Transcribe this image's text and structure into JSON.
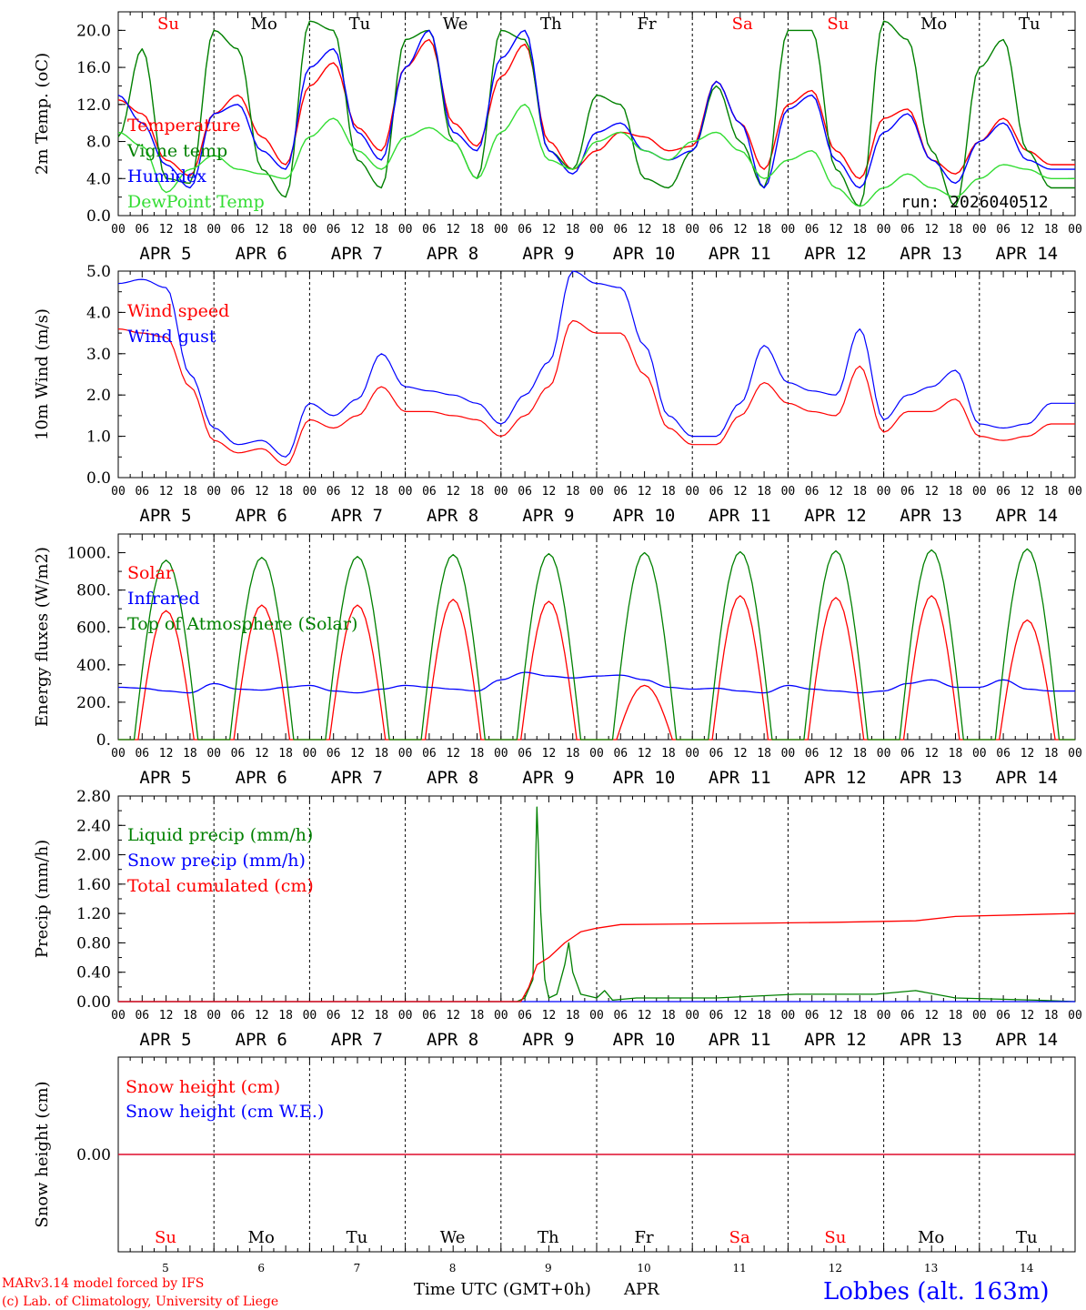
{
  "colors": {
    "red": "#ff0000",
    "green": "#008000",
    "blue": "#0000ff",
    "lightgreen": "#33dd33",
    "black": "#000000"
  },
  "run_label": "run: 2026040512",
  "hour_ticks": [
    "00",
    "06",
    "12",
    "18"
  ],
  "final_tick": "00",
  "date_labels": [
    "APR  5",
    "APR  6",
    "APR  7",
    "APR  8",
    "APR  9",
    "APR 10",
    "APR 11",
    "APR 12",
    "APR 13",
    "APR 14"
  ],
  "days": [
    {
      "abbr": "Su",
      "color": "#ff0000",
      "num": "5"
    },
    {
      "abbr": "Mo",
      "color": "#000000",
      "num": "6"
    },
    {
      "abbr": "Tu",
      "color": "#000000",
      "num": "7"
    },
    {
      "abbr": "We",
      "color": "#000000",
      "num": "8"
    },
    {
      "abbr": "Th",
      "color": "#000000",
      "num": "9"
    },
    {
      "abbr": "Fr",
      "color": "#000000",
      "num": "10"
    },
    {
      "abbr": "Sa",
      "color": "#ff0000",
      "num": "11"
    },
    {
      "abbr": "Su",
      "color": "#ff0000",
      "num": "12"
    },
    {
      "abbr": "Mo",
      "color": "#000000",
      "num": "13"
    },
    {
      "abbr": "Tu",
      "color": "#000000",
      "num": "14"
    }
  ],
  "footer": {
    "credit1": "MARv3.14 model forced by IFS",
    "credit2": "(c) Lab. of Climatology, University of Liege",
    "xlabel": "Time UTC (GMT+0h)",
    "month": "APR",
    "station": "Lobbes (alt. 163m)"
  },
  "chart_data": [
    {
      "type": "line",
      "ylabel": "2m Temp. (oC)",
      "ylim": [
        0,
        22
      ],
      "yticks": [
        "0.0",
        "4.0",
        "8.0",
        "12.0",
        "16.0",
        "20.0"
      ],
      "ytick_values": [
        0,
        4,
        8,
        12,
        16,
        20
      ],
      "x_hours_per_point": 6,
      "series": [
        {
          "name": "Temperature",
          "color": "#ff0000",
          "values": [
            12.5,
            11,
            6,
            4.3,
            11,
            13,
            8.5,
            5.5,
            14,
            16.5,
            9.5,
            7,
            16,
            19,
            10,
            7.5,
            15,
            18.5,
            8,
            5,
            7,
            9,
            8.5,
            7,
            7.5,
            14.5,
            10,
            5,
            12,
            13.5,
            7,
            4,
            10.5,
            11.5,
            6,
            4.5,
            8,
            10.5,
            7,
            5.5
          ]
        },
        {
          "name": "Vigne temp",
          "color": "#008000",
          "values": [
            8.5,
            18,
            4,
            3.5,
            20,
            18,
            5,
            2,
            21,
            20,
            6,
            3,
            19,
            20,
            8,
            4,
            20,
            19,
            7,
            5,
            13,
            12,
            4,
            3,
            7,
            14,
            8,
            3,
            20,
            20,
            5,
            1,
            21,
            19,
            7,
            1,
            16,
            19,
            7,
            3
          ]
        },
        {
          "name": "Humidex",
          "color": "#0000ff",
          "values": [
            13,
            10,
            5.5,
            3,
            11,
            12,
            7,
            5,
            16,
            18,
            9,
            6,
            16,
            20,
            9,
            7,
            17,
            20,
            7,
            4.5,
            9,
            10,
            7,
            6,
            7,
            14.5,
            10,
            3,
            11.5,
            13,
            6,
            3,
            9,
            11,
            6,
            3.5,
            8,
            10,
            6,
            5
          ]
        },
        {
          "name": "DewPoint Temp",
          "color": "#33dd33",
          "values": [
            9,
            7.5,
            2.5,
            5,
            6.5,
            5,
            4.5,
            4,
            8.5,
            10.5,
            7,
            5,
            8.5,
            9.5,
            8,
            4,
            9,
            12,
            6,
            5,
            8,
            9,
            7,
            6,
            8,
            9,
            7,
            4,
            6,
            7,
            3,
            1,
            3,
            4.5,
            3,
            2,
            4,
            5.5,
            5,
            4
          ]
        }
      ],
      "annotations": [
        "run: 2026040512"
      ]
    },
    {
      "type": "line",
      "ylabel": "10m Wind (m/s)",
      "ylim": [
        0,
        5
      ],
      "yticks": [
        "0.0",
        "1.0",
        "2.0",
        "3.0",
        "4.0",
        "5.0"
      ],
      "ytick_values": [
        0,
        1,
        2,
        3,
        4,
        5
      ],
      "x_hours_per_point": 6,
      "series": [
        {
          "name": "Wind speed",
          "color": "#ff0000",
          "values": [
            3.6,
            3.5,
            3.4,
            2.2,
            0.9,
            0.6,
            0.7,
            0.3,
            1.4,
            1.2,
            1.5,
            2.2,
            1.6,
            1.6,
            1.5,
            1.4,
            1.0,
            1.5,
            2.2,
            3.8,
            3.5,
            3.5,
            2.5,
            1.2,
            0.8,
            0.8,
            1.5,
            2.3,
            1.8,
            1.6,
            1.5,
            2.7,
            1.1,
            1.6,
            1.6,
            1.9,
            1.0,
            0.9,
            1.0,
            1.3
          ]
        },
        {
          "name": "Wind gust",
          "color": "#0000ff",
          "values": [
            4.7,
            4.8,
            4.6,
            2.5,
            1.2,
            0.8,
            0.9,
            0.5,
            1.8,
            1.5,
            1.9,
            3.0,
            2.2,
            2.1,
            2.0,
            1.8,
            1.3,
            2.0,
            2.8,
            5.0,
            4.7,
            4.6,
            3.2,
            1.5,
            1.0,
            1.0,
            1.8,
            3.2,
            2.3,
            2.1,
            2.0,
            3.6,
            1.4,
            2.0,
            2.2,
            2.6,
            1.3,
            1.2,
            1.3,
            1.8
          ]
        }
      ]
    },
    {
      "type": "line",
      "ylabel": "Energy fluxes (W/m2)",
      "ylim": [
        0,
        1100
      ],
      "yticks": [
        "0.",
        "200.",
        "400.",
        "600.",
        "800.",
        "1000."
      ],
      "ytick_values": [
        0,
        200,
        400,
        600,
        800,
        1000
      ],
      "series": [
        {
          "name": "Solar",
          "color": "#ff0000",
          "daily_peaks": [
            690,
            720,
            720,
            750,
            740,
            290,
            770,
            760,
            770,
            640
          ],
          "daytime_hours": [
            5,
            19
          ]
        },
        {
          "name": "Infrared",
          "color": "#0000ff",
          "values_6h": [
            280,
            275,
            260,
            250,
            300,
            270,
            265,
            280,
            290,
            260,
            250,
            270,
            290,
            280,
            270,
            260,
            320,
            360,
            340,
            330,
            340,
            345,
            320,
            280,
            270,
            275,
            260,
            250,
            290,
            270,
            260,
            250,
            260,
            300,
            320,
            280,
            280,
            320,
            270,
            260
          ]
        },
        {
          "name": "Top of Atmosphere (Solar)",
          "color": "#008000",
          "daily_peaks": [
            960,
            975,
            980,
            990,
            995,
            1000,
            1005,
            1010,
            1015,
            1020
          ],
          "daytime_hours": [
            4,
            20
          ]
        }
      ]
    },
    {
      "type": "line",
      "ylabel": "Precip (mm/h)",
      "ylim": [
        0,
        2.8
      ],
      "yticks": [
        "0.00",
        "0.40",
        "0.80",
        "1.20",
        "1.60",
        "2.00",
        "2.40",
        "2.80"
      ],
      "ytick_values": [
        0,
        0.4,
        0.8,
        1.2,
        1.6,
        2.0,
        2.4,
        2.8
      ],
      "series": [
        {
          "name": "Liquid precip (mm/h)",
          "color": "#008000",
          "points": [
            [
              0,
              0
            ],
            [
              100,
              0
            ],
            [
              102,
              0.05
            ],
            [
              104,
              0.3
            ],
            [
              105,
              2.65
            ],
            [
              106,
              1.2
            ],
            [
              107,
              0.3
            ],
            [
              108,
              0.05
            ],
            [
              110,
              0.1
            ],
            [
              112,
              0.5
            ],
            [
              113,
              0.8
            ],
            [
              114,
              0.4
            ],
            [
              116,
              0.1
            ],
            [
              120,
              0.05
            ],
            [
              122,
              0.15
            ],
            [
              124,
              0.02
            ],
            [
              130,
              0.05
            ],
            [
              150,
              0.05
            ],
            [
              170,
              0.1
            ],
            [
              190,
              0.1
            ],
            [
              200,
              0.15
            ],
            [
              210,
              0.05
            ],
            [
              230,
              0.02
            ],
            [
              240,
              0
            ]
          ]
        },
        {
          "name": "Snow precip (mm/h)",
          "color": "#0000ff",
          "points": [
            [
              0,
              0
            ],
            [
              240,
              0
            ]
          ]
        },
        {
          "name": "Total cumulated (cm)",
          "color": "#ff0000",
          "points": [
            [
              0,
              0
            ],
            [
              101,
              0
            ],
            [
              103,
              0.2
            ],
            [
              105,
              0.5
            ],
            [
              108,
              0.6
            ],
            [
              112,
              0.8
            ],
            [
              116,
              0.95
            ],
            [
              120,
              1.0
            ],
            [
              126,
              1.05
            ],
            [
              150,
              1.06
            ],
            [
              180,
              1.08
            ],
            [
              200,
              1.1
            ],
            [
              210,
              1.16
            ],
            [
              240,
              1.2
            ]
          ]
        }
      ]
    },
    {
      "type": "line",
      "ylabel": "Snow height (cm)",
      "ylim": [
        -1,
        1
      ],
      "yticks": [
        "0.00"
      ],
      "ytick_values": [
        0
      ],
      "series": [
        {
          "name": "Snow height (cm)",
          "color": "#ff0000",
          "points": [
            [
              0,
              0
            ],
            [
              240,
              0
            ]
          ]
        },
        {
          "name": "Snow height (cm W.E.)",
          "color": "#0000ff",
          "points": [
            [
              0,
              0
            ],
            [
              240,
              0
            ]
          ]
        }
      ]
    }
  ]
}
